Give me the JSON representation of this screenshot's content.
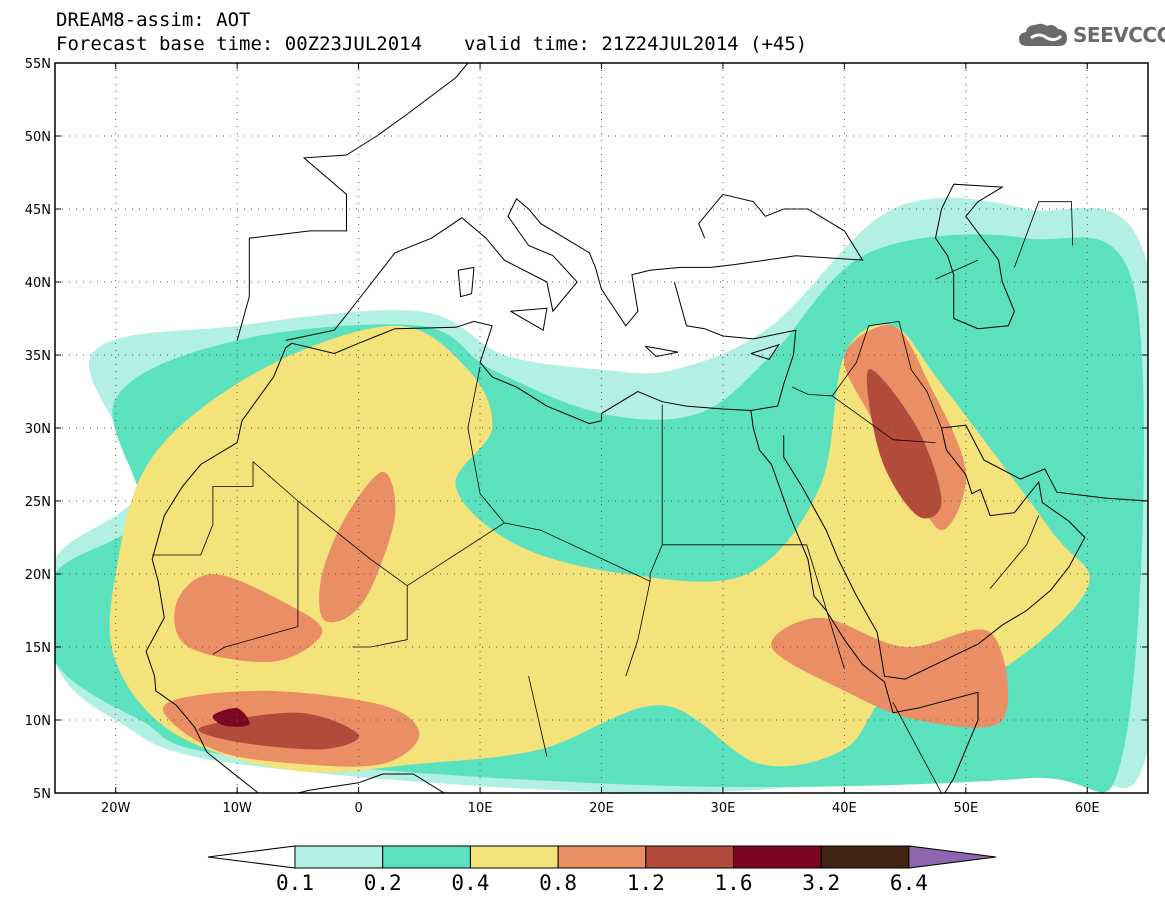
{
  "header": {
    "title_line1": "DREAM8-assim: AOT",
    "base_time": "Forecast base time: 00Z23JUL2014",
    "valid_time": "valid time: 21Z24JUL2014 (+45)"
  },
  "logo": {
    "icon": "cloud-icon",
    "text": "SEEVCCC"
  },
  "map": {
    "lon_range": [
      -25,
      65
    ],
    "lat_range": [
      5,
      55
    ],
    "gridlines": "dotted",
    "lat_ticks": [
      {
        "value": 55,
        "label": "55N"
      },
      {
        "value": 50,
        "label": "50N"
      },
      {
        "value": 45,
        "label": "45N"
      },
      {
        "value": 40,
        "label": "40N"
      },
      {
        "value": 35,
        "label": "35N"
      },
      {
        "value": 30,
        "label": "30N"
      },
      {
        "value": 25,
        "label": "25N"
      },
      {
        "value": 20,
        "label": "20N"
      },
      {
        "value": 15,
        "label": "15N"
      },
      {
        "value": 10,
        "label": "10N"
      },
      {
        "value": 5,
        "label": "5N"
      }
    ],
    "lon_ticks": [
      {
        "value": -20,
        "label": "20W"
      },
      {
        "value": -10,
        "label": "10W"
      },
      {
        "value": 0,
        "label": "0"
      },
      {
        "value": 10,
        "label": "10E"
      },
      {
        "value": 20,
        "label": "20E"
      },
      {
        "value": 30,
        "label": "30E"
      },
      {
        "value": 40,
        "label": "40E"
      },
      {
        "value": 50,
        "label": "50E"
      },
      {
        "value": 60,
        "label": "60E"
      }
    ]
  },
  "colorbar": {
    "colors": [
      "#ffffff",
      "#b2f0e4",
      "#5ce1be",
      "#f4e27a",
      "#ea8e65",
      "#b34b3a",
      "#7d0620",
      "#3f2414",
      "#8e66ae"
    ],
    "labels": [
      "0.1",
      "0.2",
      "0.4",
      "0.8",
      "1.2",
      "1.6",
      "3.2",
      "6.4"
    ]
  },
  "chart_data": {
    "type": "heatmap",
    "variable": "AOT",
    "title": "DREAM8-assim: AOT",
    "levels": [
      0.1,
      0.2,
      0.4,
      0.8,
      1.2,
      1.6,
      3.2,
      6.4
    ],
    "xlim": [
      -25,
      65
    ],
    "ylim": [
      5,
      55
    ],
    "zones": [
      {
        "level": 0.1,
        "lon": [
          [
            -22,
            35
          ],
          [
            -10,
            37
          ],
          [
            5,
            38
          ],
          [
            12,
            35
          ],
          [
            20,
            34
          ],
          [
            26,
            34
          ],
          [
            34,
            37
          ],
          [
            44,
            45
          ],
          [
            55,
            45
          ],
          [
            65,
            41
          ],
          [
            65,
            8
          ],
          [
            55,
            7
          ],
          [
            25,
            5
          ],
          [
            -10,
            7
          ],
          [
            -20,
            10
          ],
          [
            -25,
            14
          ],
          [
            -25,
            21
          ],
          [
            -18,
            26
          ]
        ]
      },
      {
        "level": 0.2,
        "lon": [
          [
            -20,
            32
          ],
          [
            -10,
            36
          ],
          [
            5,
            37
          ],
          [
            11,
            34
          ],
          [
            20,
            31
          ],
          [
            28,
            31
          ],
          [
            34,
            35
          ],
          [
            42,
            42
          ],
          [
            55,
            43
          ],
          [
            64,
            39
          ],
          [
            63,
            8
          ],
          [
            55,
            6
          ],
          [
            25,
            5.5
          ],
          [
            -10,
            7.5
          ],
          [
            -18,
            10
          ],
          [
            -25,
            14
          ],
          [
            -25,
            20
          ],
          [
            -18,
            24
          ]
        ]
      },
      {
        "level": 0.4,
        "lon": [
          [
            -17,
            28
          ],
          [
            -8,
            34
          ],
          [
            3,
            37
          ],
          [
            9,
            34
          ],
          [
            11,
            30
          ],
          [
            8,
            26
          ],
          [
            13,
            22
          ],
          [
            22,
            20
          ],
          [
            32,
            20
          ],
          [
            38,
            26
          ],
          [
            40,
            35
          ],
          [
            44,
            37
          ],
          [
            48,
            33
          ],
          [
            57,
            23
          ],
          [
            60,
            19
          ],
          [
            52,
            13
          ],
          [
            44,
            12
          ],
          [
            40,
            8
          ],
          [
            33,
            7
          ],
          [
            25,
            11
          ],
          [
            15,
            8
          ],
          [
            5,
            7
          ],
          [
            -5,
            6.5
          ],
          [
            -15,
            9
          ],
          [
            -20,
            14
          ],
          [
            -20,
            20
          ]
        ]
      },
      {
        "level": 0.8,
        "lon": [
          [
            -15,
            18
          ],
          [
            -12,
            20
          ],
          [
            -6,
            18
          ],
          [
            -3,
            16
          ],
          [
            -7,
            14
          ],
          [
            -14,
            15
          ]
        ]
      },
      {
        "level": 0.8,
        "lon": [
          [
            -3,
            20
          ],
          [
            -1,
            24
          ],
          [
            2,
            27
          ],
          [
            3,
            24
          ],
          [
            1,
            19
          ],
          [
            -1,
            17
          ],
          [
            -3,
            17
          ]
        ]
      },
      {
        "level": 0.8,
        "lon": [
          [
            -16,
            11
          ],
          [
            -8,
            12
          ],
          [
            2,
            11
          ],
          [
            5,
            9
          ],
          [
            2,
            7
          ],
          [
            -5,
            7
          ],
          [
            -12,
            8
          ]
        ]
      },
      {
        "level": 0.8,
        "lon": [
          [
            40,
            35
          ],
          [
            44,
            37
          ],
          [
            47,
            33
          ],
          [
            50,
            27
          ],
          [
            48,
            23
          ],
          [
            45,
            27
          ],
          [
            42,
            31
          ]
        ]
      },
      {
        "level": 0.8,
        "lon": [
          [
            34,
            15
          ],
          [
            38,
            17
          ],
          [
            45,
            15
          ],
          [
            52,
            16
          ],
          [
            53,
            10
          ],
          [
            46,
            10
          ],
          [
            40,
            12
          ]
        ]
      },
      {
        "level": 1.2,
        "lon": [
          [
            -13,
            9.5
          ],
          [
            -5,
            10.5
          ],
          [
            0,
            9
          ],
          [
            -3,
            8
          ],
          [
            -10,
            8.5
          ]
        ]
      },
      {
        "level": 1.2,
        "lon": [
          [
            42,
            34
          ],
          [
            46,
            30
          ],
          [
            48,
            25
          ],
          [
            46,
            24
          ],
          [
            43,
            28
          ]
        ]
      },
      {
        "level": 1.6,
        "lon": [
          [
            -12,
            10.3
          ],
          [
            -10,
            10.8
          ],
          [
            -9,
            9.7
          ],
          [
            -11,
            9.6
          ]
        ]
      }
    ]
  }
}
